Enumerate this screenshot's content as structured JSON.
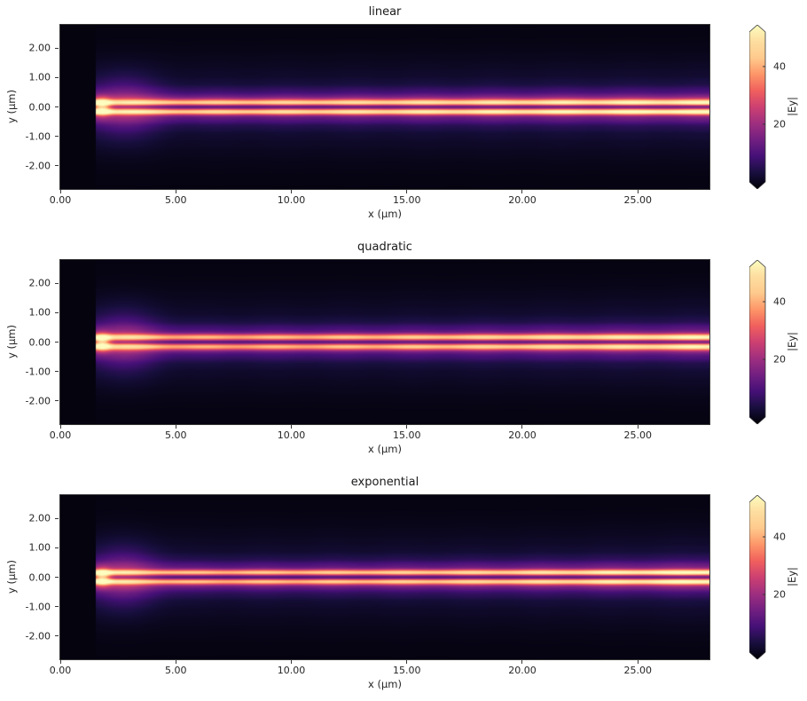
{
  "figure": {
    "background": "#ffffff",
    "text_color": "#262626",
    "axis_color": "#363636"
  },
  "colormap": {
    "name": "magma",
    "stops": [
      [
        0.0,
        "#000004"
      ],
      [
        0.1,
        "#180f3e"
      ],
      [
        0.2,
        "#451077"
      ],
      [
        0.3,
        "#721f81"
      ],
      [
        0.4,
        "#9f2f7f"
      ],
      [
        0.5,
        "#cd4071"
      ],
      [
        0.6,
        "#f1605d"
      ],
      [
        0.7,
        "#fd9668"
      ],
      [
        0.8,
        "#feca8d"
      ],
      [
        0.9,
        "#fddea0"
      ],
      [
        1.0,
        "#fcfdbf"
      ]
    ]
  },
  "chart_data": [
    {
      "type": "heatmap",
      "title": "linear",
      "xlabel": "x (µm)",
      "ylabel": "y (µm)",
      "xlim": [
        0,
        28.1
      ],
      "ylim": [
        -2.8,
        2.8
      ],
      "xticks": [
        0,
        5,
        10,
        15,
        20,
        25
      ],
      "xtick_labels": [
        "0.00",
        "5.00",
        "10.00",
        "15.00",
        "20.00",
        "25.00"
      ],
      "yticks": [
        2,
        1,
        0,
        -1,
        -2
      ],
      "ytick_labels": [
        "2.00",
        "1.00",
        "0.00",
        "-1.00",
        "-2.00"
      ],
      "colorbar": {
        "label": "|Ey|",
        "ticks": [
          20,
          40
        ],
        "tick_labels": [
          "20",
          "40"
        ],
        "vmin": 0,
        "vmax": 52,
        "extend": "both"
      },
      "beam": {
        "profile": "linear",
        "start_x": 1.55,
        "center_y": 0,
        "lobe_offset": 0.16,
        "lobe_sigma": 0.1,
        "core_sigma": 0.33,
        "dip_sigma": 0.055,
        "base_amp": 0.63,
        "grow_amp": 0.18
      }
    },
    {
      "type": "heatmap",
      "title": "quadratic",
      "xlabel": "x (µm)",
      "ylabel": "y (µm)",
      "xlim": [
        0,
        28.1
      ],
      "ylim": [
        -2.8,
        2.8
      ],
      "xticks": [
        0,
        5,
        10,
        15,
        20,
        25
      ],
      "xtick_labels": [
        "0.00",
        "5.00",
        "10.00",
        "15.00",
        "20.00",
        "25.00"
      ],
      "yticks": [
        2,
        1,
        0,
        -1,
        -2
      ],
      "ytick_labels": [
        "2.00",
        "1.00",
        "0.00",
        "-1.00",
        "-2.00"
      ],
      "colorbar": {
        "label": "|Ey|",
        "ticks": [
          20,
          40
        ],
        "tick_labels": [
          "20",
          "40"
        ],
        "vmin": 0,
        "vmax": 52,
        "extend": "both"
      },
      "beam": {
        "profile": "quadratic",
        "start_x": 1.55,
        "center_y": 0,
        "lobe_offset": 0.16,
        "lobe_sigma": 0.1,
        "core_sigma": 0.33,
        "dip_sigma": 0.055,
        "base_amp": 0.6,
        "grow_amp": 0.22
      }
    },
    {
      "type": "heatmap",
      "title": "exponential",
      "xlabel": "x (µm)",
      "ylabel": "y (µm)",
      "xlim": [
        0,
        28.1
      ],
      "ylim": [
        -2.8,
        2.8
      ],
      "xticks": [
        0,
        5,
        10,
        15,
        20,
        25
      ],
      "xtick_labels": [
        "0.00",
        "5.00",
        "10.00",
        "15.00",
        "20.00",
        "25.00"
      ],
      "yticks": [
        2,
        1,
        0,
        -1,
        -2
      ],
      "ytick_labels": [
        "2.00",
        "1.00",
        "0.00",
        "-1.00",
        "-2.00"
      ],
      "colorbar": {
        "label": "|Ey|",
        "ticks": [
          20,
          40
        ],
        "tick_labels": [
          "20",
          "40"
        ],
        "vmin": 0,
        "vmax": 52,
        "extend": "both"
      },
      "beam": {
        "profile": "exponential",
        "start_x": 1.55,
        "center_y": 0,
        "lobe_offset": 0.16,
        "lobe_sigma": 0.1,
        "core_sigma": 0.33,
        "dip_sigma": 0.055,
        "base_amp": 0.58,
        "grow_amp": 0.24
      }
    }
  ]
}
